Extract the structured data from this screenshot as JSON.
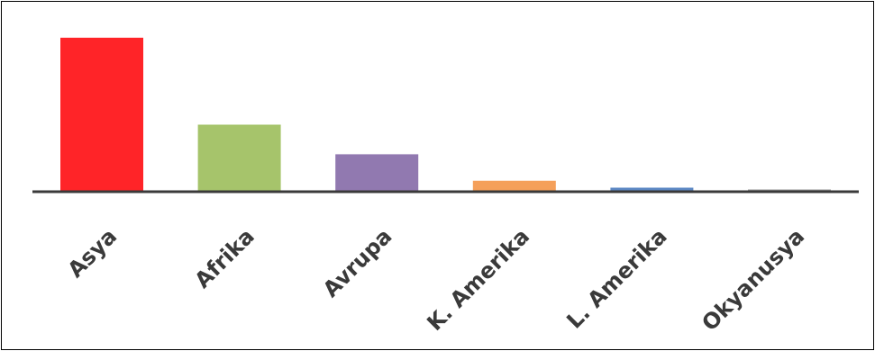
{
  "chart_data": {
    "type": "bar",
    "title": "",
    "xlabel": "",
    "ylabel": "",
    "categories": [
      "Asya",
      "Afrika",
      "Avrupa",
      "K. Amerika",
      "L. Amerika",
      "Okyanusya"
    ],
    "values": [
      4400,
      1900,
      1050,
      290,
      90,
      20
    ],
    "colors": [
      "#ff2428",
      "#a6c46b",
      "#9179b0",
      "#f5a05a",
      "#5d88c4",
      "#9a9a9a"
    ],
    "ylim": [
      0,
      4500
    ],
    "axis_color": "#3a3a3a",
    "grid": false,
    "legend": "none"
  }
}
